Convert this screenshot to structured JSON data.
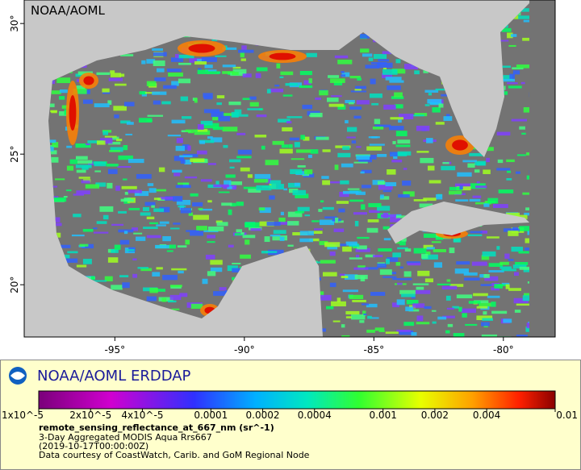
{
  "map": {
    "watermark": "NOAA/AOML",
    "lonlim": [
      -98.5,
      -78
    ],
    "latlim": [
      18,
      30.9
    ],
    "lon_ticks": [
      {
        "value": -95,
        "label": "-95°"
      },
      {
        "value": -90,
        "label": "-90°"
      },
      {
        "value": -85,
        "label": "-85°"
      },
      {
        "value": -80,
        "label": "-80°"
      }
    ],
    "lat_ticks": [
      {
        "value": 30,
        "label": "30°"
      },
      {
        "value": 25,
        "label": "25°"
      },
      {
        "value": 20,
        "label": "20°"
      }
    ]
  },
  "legend": {
    "title": "NOAA/AOML ERDDAP",
    "scale": "log",
    "range": [
      1e-05,
      0.01
    ],
    "ticks": [
      {
        "value": 1e-05,
        "label": "1x10^-5"
      },
      {
        "value": 2e-05,
        "label": "2x10^-5"
      },
      {
        "value": 4e-05,
        "label": "4x10^-5"
      },
      0.0001,
      0.0002,
      0.0004,
      0.001,
      0.002,
      0.004,
      0.01
    ],
    "variable": "remote_sensing_reflectance_at_667_nm (sr^-1)",
    "lines": [
      "3-Day Aggregated MODIS Aqua Rrs667",
      "(2019-10-17T00:00:00Z)",
      "Data courtesy of CoastWatch, Carib. and GoM Regional Node"
    ]
  }
}
